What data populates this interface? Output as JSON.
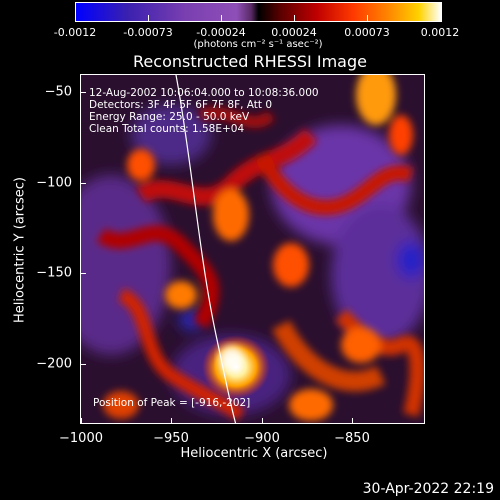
{
  "colorbar": {
    "ticks": [
      "-0.0012",
      "-0.00073",
      "-0.00024",
      "0.00024",
      "0.00073",
      "0.0012"
    ],
    "unit": "(photons cm⁻² s⁻¹ asec⁻²)"
  },
  "title": "Reconstructed RHESSI Image",
  "info": {
    "line1": "12-Aug-2002 10:06:04.000 to 10:08:36.000",
    "line2": "Detectors: 3F 4F 5F 6F 7F 8F, Att 0",
    "line3": "Energy Range: 25.0 - 50.0 keV",
    "line4": "Clean    Total counts: 1.58E+04",
    "peak": "Position of Peak = [-916,-202]"
  },
  "axes": {
    "xlabel": "Heliocentric X (arcsec)",
    "ylabel": "Heliocentric Y (arcsec)",
    "xticks": [
      "−1000",
      "−950",
      "−900",
      "−850"
    ],
    "yticks": [
      "−50",
      "−100",
      "−150",
      "−200"
    ]
  },
  "footer": {
    "date": "30-Apr-2022 22:19"
  }
}
